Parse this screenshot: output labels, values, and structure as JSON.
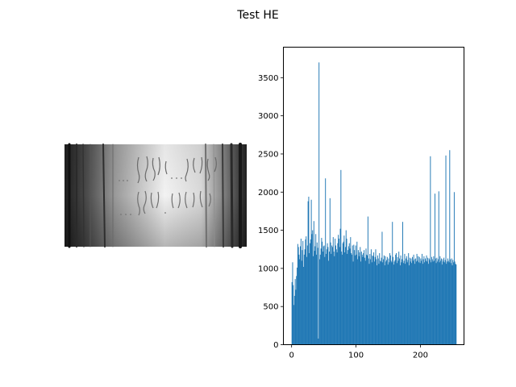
{
  "figure": {
    "title": "Test HE"
  },
  "image_panel": {
    "description_icon": "grayscale-image",
    "colors": {
      "dark": "#202020",
      "mid": "#8a8a8a",
      "bright": "#f4f4f4"
    }
  },
  "chart_data": {
    "type": "histogram",
    "title": "",
    "xlabel": "",
    "ylabel": "",
    "bin_width": 1,
    "x_range": [
      0,
      255
    ],
    "xlim": [
      -12.75,
      267.75
    ],
    "ylim": [
      0,
      3900
    ],
    "xticks": [
      0,
      100,
      200
    ],
    "yticks": [
      0,
      500,
      1000,
      1500,
      2000,
      2500,
      3000,
      3500
    ],
    "bar_color": "#1f77b4",
    "grid": false,
    "legend": "none",
    "notable_peaks": [
      {
        "x": 42,
        "count": 3700
      },
      {
        "x": 245,
        "count": 2550
      },
      {
        "x": 215,
        "count": 2470
      },
      {
        "x": 76,
        "count": 2290
      },
      {
        "x": 52,
        "count": 2180
      },
      {
        "x": 239,
        "count": 2480
      },
      {
        "x": 228,
        "count": 2010
      },
      {
        "x": 26,
        "count": 1940
      },
      {
        "x": 222,
        "count": 1980
      }
    ],
    "values": [
      820,
      1080,
      780,
      520,
      640,
      860,
      720,
      900,
      1010,
      1320,
      1280,
      1180,
      1120,
      1290,
      1390,
      1100,
      1240,
      1360,
      1020,
      1180,
      1250,
      1380,
      1420,
      1150,
      1300,
      1880,
      1940,
      1200,
      1330,
      1380,
      1900,
      1450,
      1500,
      1160,
      1620,
      1230,
      1290,
      1450,
      1180,
      1340,
      1270,
      80,
      3700,
      1120,
      1180,
      1260,
      1400,
      1350,
      1220,
      1290,
      1300,
      1150,
      2180,
      1190,
      1250,
      1330,
      1280,
      1100,
      1220,
      1920,
      1340,
      1190,
      1300,
      1280,
      1410,
      1220,
      1160,
      1390,
      1300,
      1250,
      1210,
      1330,
      1440,
      1390,
      1280,
      1520,
      2290,
      1220,
      1180,
      1330,
      1350,
      1430,
      1210,
      1280,
      1500,
      1390,
      1190,
      1240,
      1290,
      1330,
      1260,
      1410,
      1200,
      1180,
      1300,
      1090,
      1310,
      1240,
      1170,
      1300,
      1180,
      1350,
      1120,
      1240,
      1160,
      1210,
      1280,
      1090,
      1220,
      1180,
      1150,
      1200,
      1240,
      1140,
      1100,
      1260,
      1180,
      1170,
      1680,
      1130,
      1060,
      1190,
      1120,
      1250,
      1080,
      1170,
      1160,
      1210,
      1090,
      1150,
      1250,
      1120,
      1040,
      1170,
      1130,
      1060,
      1200,
      1100,
      1090,
      1140,
      1480,
      1080,
      1120,
      1170,
      1040,
      1160,
      1090,
      1110,
      1150,
      1050,
      1130,
      1080,
      1200,
      1170,
      1100,
      1080,
      1610,
      1150,
      1050,
      1090,
      1110,
      1180,
      1200,
      1070,
      1150,
      1100,
      1220,
      1130,
      1040,
      1170,
      1080,
      1120,
      1610,
      1070,
      1100,
      1190,
      1060,
      1130,
      1160,
      1080,
      1110,
      1200,
      1040,
      1140,
      1090,
      1130,
      1070,
      1150,
      1100,
      1180,
      1120,
      1060,
      1130,
      1090,
      1190,
      1100,
      1160,
      1080,
      1150,
      1070,
      1130,
      1100,
      1190,
      1060,
      1120,
      1160,
      1080,
      1130,
      1100,
      1170,
      1090,
      1140,
      1060,
      1130,
      1110,
      2470,
      1080,
      1150,
      1120,
      1090,
      1160,
      1100,
      1980,
      1130,
      1070,
      1140,
      1090,
      1120,
      2010,
      1080,
      1160,
      1100,
      1130,
      1050,
      1120,
      1090,
      1140,
      1080,
      1110,
      2480,
      1060,
      1090,
      1130,
      1100,
      1080,
      2550,
      1120,
      1070,
      1130,
      1040,
      1110,
      1080,
      2000,
      1090,
      1060,
      1050
    ]
  }
}
